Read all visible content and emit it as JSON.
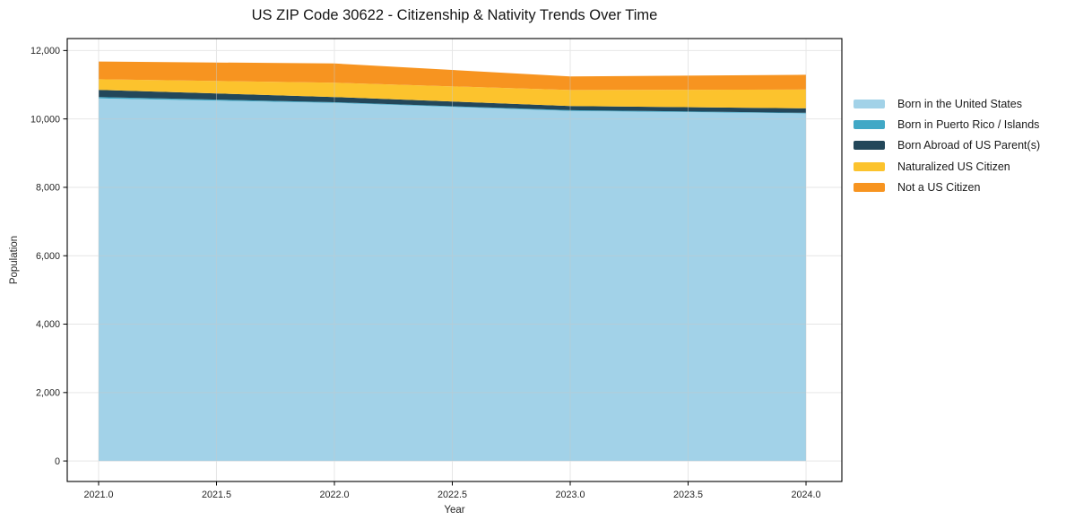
{
  "title": "US ZIP Code 30622 - Citizenship & Nativity Trends Over Time",
  "axes": {
    "xlabel": "Year",
    "ylabel": "Population"
  },
  "chart_data": {
    "type": "area",
    "stacked": true,
    "title": "US ZIP Code 30622 - Citizenship & Nativity Trends Over Time",
    "xlabel": "Year",
    "ylabel": "Population",
    "x": [
      2021,
      2022,
      2023,
      2024
    ],
    "series": [
      {
        "name": "Born in the United States",
        "color": "#a2d2e8",
        "values": [
          10600,
          10470,
          10235,
          10160
        ]
      },
      {
        "name": "Born in Puerto Rico / Islands",
        "color": "#41a8c6",
        "values": [
          40,
          20,
          20,
          20
        ]
      },
      {
        "name": "Born Abroad of US Parent(s)",
        "color": "#23475a",
        "values": [
          210,
          150,
          120,
          130
        ]
      },
      {
        "name": "Naturalized US Citizen",
        "color": "#fcc32d",
        "values": [
          310,
          420,
          470,
          550
        ]
      },
      {
        "name": "Not a US Citizen",
        "color": "#f79420",
        "values": [
          520,
          560,
          395,
          430
        ]
      }
    ],
    "totals_by_year": [
      11680,
      11620,
      11240,
      11290
    ],
    "xlim": [
      2020.867,
      2024.152
    ],
    "ylim": [
      -600,
      12350
    ],
    "x_ticks": [
      2021.0,
      2021.5,
      2022.0,
      2022.5,
      2023.0,
      2023.5,
      2024.0
    ],
    "x_tick_labels": [
      "2021.0",
      "2021.5",
      "2022.0",
      "2022.5",
      "2023.0",
      "2023.5",
      "2024.0"
    ],
    "y_ticks": [
      0,
      2000,
      4000,
      6000,
      8000,
      10000,
      12000
    ],
    "y_tick_labels": [
      "0",
      "2,000",
      "4,000",
      "6,000",
      "8,000",
      "10,000",
      "12,000"
    ],
    "grid": true,
    "grid_color": "#c9c9c9",
    "spine_color": "#000000",
    "tick_label_color": "#262626",
    "legend_position": "outside-right"
  }
}
